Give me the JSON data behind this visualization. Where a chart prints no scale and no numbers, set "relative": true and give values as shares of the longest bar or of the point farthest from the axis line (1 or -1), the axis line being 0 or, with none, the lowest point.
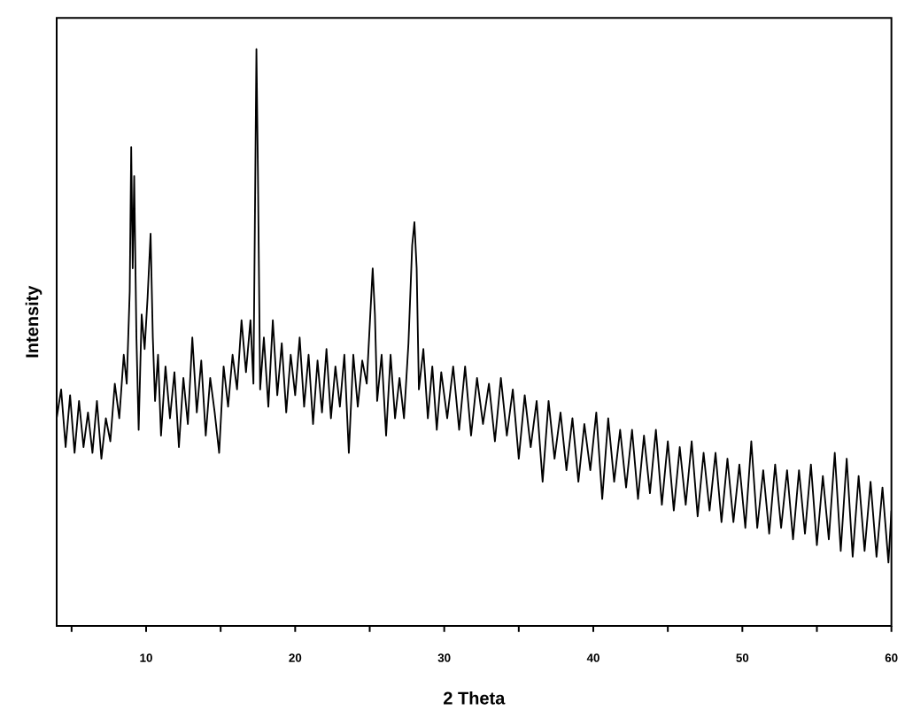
{
  "chart_data": {
    "type": "line",
    "relative": true,
    "xlabel": "2 Theta",
    "ylabel": "Intensity",
    "xlim": [
      4,
      60
    ],
    "xticks": [
      {
        "value": 5,
        "label": null
      },
      10,
      {
        "value": 15,
        "label": null
      },
      20,
      {
        "value": 25,
        "label": null
      },
      30,
      {
        "value": 35,
        "label": null
      },
      40,
      {
        "value": 45,
        "label": null
      },
      50,
      {
        "value": 55,
        "label": null
      },
      60
    ],
    "marker": "none",
    "line_style": "solid",
    "series": [
      {
        "color": "#000000",
        "x": [
          4.0,
          4.3,
          4.6,
          4.9,
          5.2,
          5.5,
          5.8,
          6.1,
          6.4,
          6.7,
          7.0,
          7.3,
          7.6,
          7.9,
          8.2,
          8.5,
          8.7,
          8.9,
          9.0,
          9.1,
          9.2,
          9.35,
          9.5,
          9.7,
          9.9,
          10.1,
          10.3,
          10.45,
          10.6,
          10.8,
          11.0,
          11.3,
          11.6,
          11.9,
          12.2,
          12.5,
          12.8,
          13.1,
          13.4,
          13.7,
          14.0,
          14.3,
          14.6,
          14.9,
          15.2,
          15.5,
          15.8,
          16.1,
          16.4,
          16.7,
          17.0,
          17.2,
          17.4,
          17.5,
          17.65,
          17.9,
          18.2,
          18.5,
          18.8,
          19.1,
          19.4,
          19.7,
          20.0,
          20.3,
          20.6,
          20.9,
          21.2,
          21.5,
          21.8,
          22.1,
          22.4,
          22.7,
          23.0,
          23.3,
          23.6,
          23.9,
          24.2,
          24.5,
          24.8,
          25.0,
          25.2,
          25.35,
          25.5,
          25.8,
          26.1,
          26.4,
          26.7,
          27.0,
          27.3,
          27.6,
          27.85,
          28.0,
          28.15,
          28.3,
          28.6,
          28.9,
          29.2,
          29.5,
          29.8,
          30.2,
          30.6,
          31.0,
          31.4,
          31.8,
          32.2,
          32.6,
          33.0,
          33.4,
          33.8,
          34.2,
          34.6,
          35.0,
          35.4,
          35.8,
          36.2,
          36.6,
          37.0,
          37.4,
          37.8,
          38.2,
          38.6,
          39.0,
          39.4,
          39.8,
          40.2,
          40.6,
          41.0,
          41.4,
          41.8,
          42.2,
          42.6,
          43.0,
          43.4,
          43.8,
          44.2,
          44.6,
          45.0,
          45.4,
          45.8,
          46.2,
          46.6,
          47.0,
          47.4,
          47.8,
          48.2,
          48.6,
          49.0,
          49.4,
          49.8,
          50.2,
          50.6,
          51.0,
          51.4,
          51.8,
          52.2,
          52.6,
          53.0,
          53.4,
          53.8,
          54.2,
          54.6,
          55.0,
          55.4,
          55.8,
          56.2,
          56.6,
          57.0,
          57.4,
          57.8,
          58.2,
          58.6,
          59.0,
          59.4,
          59.8,
          60.0
        ],
        "values": [
          0.36,
          0.41,
          0.31,
          0.4,
          0.3,
          0.39,
          0.31,
          0.37,
          0.3,
          0.39,
          0.29,
          0.36,
          0.32,
          0.42,
          0.36,
          0.47,
          0.42,
          0.58,
          0.83,
          0.62,
          0.78,
          0.5,
          0.34,
          0.54,
          0.48,
          0.57,
          0.68,
          0.5,
          0.39,
          0.47,
          0.33,
          0.45,
          0.36,
          0.44,
          0.31,
          0.43,
          0.35,
          0.5,
          0.37,
          0.46,
          0.33,
          0.43,
          0.37,
          0.3,
          0.45,
          0.38,
          0.47,
          0.41,
          0.53,
          0.44,
          0.53,
          0.42,
          1.0,
          0.79,
          0.41,
          0.5,
          0.38,
          0.53,
          0.4,
          0.49,
          0.37,
          0.47,
          0.4,
          0.5,
          0.38,
          0.47,
          0.35,
          0.46,
          0.37,
          0.48,
          0.36,
          0.45,
          0.38,
          0.47,
          0.3,
          0.47,
          0.38,
          0.46,
          0.42,
          0.52,
          0.62,
          0.54,
          0.39,
          0.47,
          0.33,
          0.47,
          0.36,
          0.43,
          0.36,
          0.49,
          0.66,
          0.7,
          0.62,
          0.41,
          0.48,
          0.36,
          0.45,
          0.34,
          0.44,
          0.36,
          0.45,
          0.34,
          0.45,
          0.33,
          0.43,
          0.35,
          0.42,
          0.32,
          0.43,
          0.33,
          0.41,
          0.29,
          0.4,
          0.31,
          0.39,
          0.25,
          0.39,
          0.29,
          0.37,
          0.27,
          0.36,
          0.25,
          0.35,
          0.27,
          0.37,
          0.22,
          0.36,
          0.25,
          0.34,
          0.24,
          0.34,
          0.22,
          0.33,
          0.23,
          0.34,
          0.21,
          0.32,
          0.2,
          0.31,
          0.21,
          0.32,
          0.19,
          0.3,
          0.2,
          0.3,
          0.18,
          0.29,
          0.18,
          0.28,
          0.17,
          0.32,
          0.17,
          0.27,
          0.16,
          0.28,
          0.17,
          0.27,
          0.15,
          0.27,
          0.16,
          0.28,
          0.14,
          0.26,
          0.15,
          0.3,
          0.13,
          0.29,
          0.12,
          0.26,
          0.13,
          0.25,
          0.12,
          0.24,
          0.11,
          0.2
        ]
      }
    ]
  }
}
